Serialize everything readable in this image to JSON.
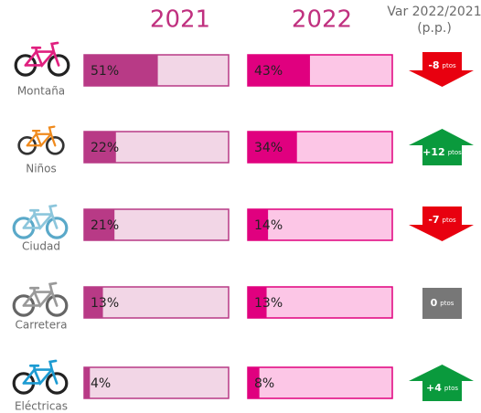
{
  "chart_data": {
    "type": "progress",
    "categories": [
      "Montaña",
      "Niños",
      "Ciudad",
      "Carretera",
      "Eléctricas"
    ],
    "xlim": [
      0,
      100
    ],
    "series": [
      {
        "name": "2021",
        "color": "#b83a86",
        "track_color": "#f2d6e6",
        "values": [
          51,
          22,
          21,
          13,
          4
        ],
        "value_labels": [
          "51%",
          "22%",
          "21%",
          "13%",
          "4%"
        ]
      },
      {
        "name": "2022",
        "color": "#e0007f",
        "track_color": "#fcc6e6",
        "values": [
          43,
          34,
          14,
          13,
          8
        ],
        "value_labels": [
          "43%",
          "34%",
          "14%",
          "13%",
          "8%"
        ]
      }
    ],
    "variation": {
      "title": [
        "Var 2022/2021",
        "(p.p.)"
      ],
      "values": [
        -8,
        12,
        -7,
        0,
        4
      ],
      "value_labels": [
        "-8",
        "+12",
        "-7",
        "0",
        "+4"
      ],
      "unit": "ptos",
      "up_color": "#0a9a3d",
      "down_color": "#e8000f",
      "zero_color": "#777777"
    }
  }
}
